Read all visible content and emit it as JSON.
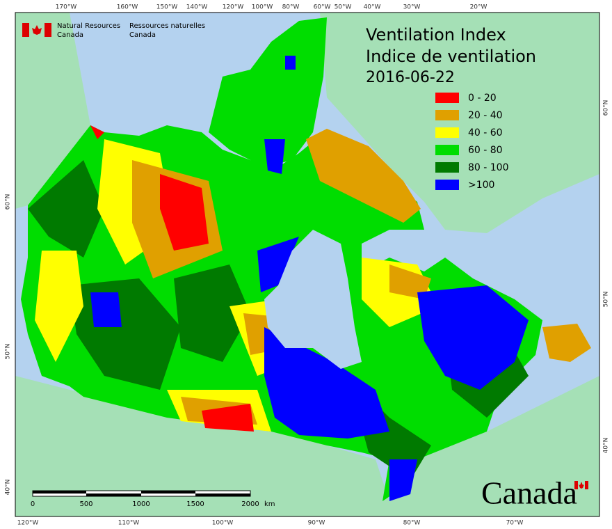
{
  "header": {
    "org_en": [
      "Natural Resources",
      "Canada"
    ],
    "org_fr": [
      "Ressources naturelles",
      "Canada"
    ]
  },
  "title": [
    "Ventilation Index",
    "Indice de ventilation"
  ],
  "date": "2016-06-22",
  "legend": [
    {
      "label": "0 - 20",
      "color": "#ff0000"
    },
    {
      "label": "20 - 40",
      "color": "#e0a000"
    },
    {
      "label": "40 - 60",
      "color": "#ffff00"
    },
    {
      "label": "60 - 80",
      "color": "#00dd00"
    },
    {
      "label": "80 - 100",
      "color": "#007a00"
    },
    {
      "label": ">100",
      "color": "#0000ff"
    }
  ],
  "graticule": {
    "top": [
      "170°W",
      "160°W",
      "150°W",
      "140°W",
      "120°W",
      "100°W",
      "80°W",
      "60°W",
      "50°W",
      "40°W",
      "30°W",
      "20°W"
    ],
    "bottom": [
      "120°W",
      "110°W",
      "100°W",
      "90°W",
      "80°W",
      "70°W"
    ],
    "left": [
      "60°N",
      "50°N",
      "40°N"
    ],
    "right": [
      "60°N",
      "50°N",
      "40°N"
    ]
  },
  "scale_bar": {
    "labels": [
      "0",
      "500",
      "1000",
      "1500",
      "2000"
    ],
    "unit": "km"
  },
  "wordmark": "Canada"
}
